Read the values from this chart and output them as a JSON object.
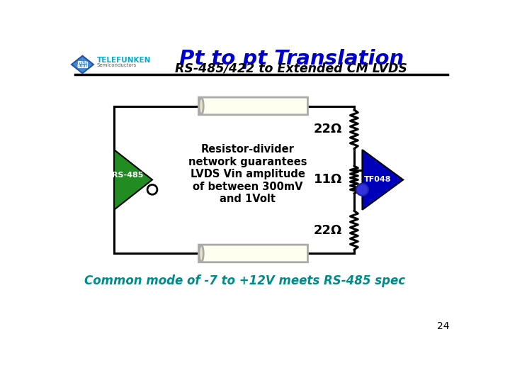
{
  "title": "Pt to pt Translation",
  "subtitle": "RS-485/422 to Extended CM LVDS",
  "title_color": "#0000CC",
  "subtitle_color": "#000000",
  "bg_color": "#FFFFFF",
  "pill_fill": "#FFFFF0",
  "pill_edge": "#AAAAAA",
  "rs485_color": "#228B22",
  "tf048_color": "#0000BB",
  "wire_color": "#000000",
  "zigzag_color": "#000000",
  "label_color": "#000000",
  "bottom_text": "Common mode of -7 to +12V meets RS-485 spec",
  "bottom_text_color": "#008B8B",
  "page_number": "24",
  "center_text": "Resistor-divider\nnetwork guarantees\nLVDS Vin amplitude\nof between 300mV\nand 1Volt",
  "res_22_top": "22Ω",
  "res_11": "11Ω",
  "res_22_bot": "22Ω",
  "rs485_label": "RS-485",
  "tf048_label": "TF048"
}
